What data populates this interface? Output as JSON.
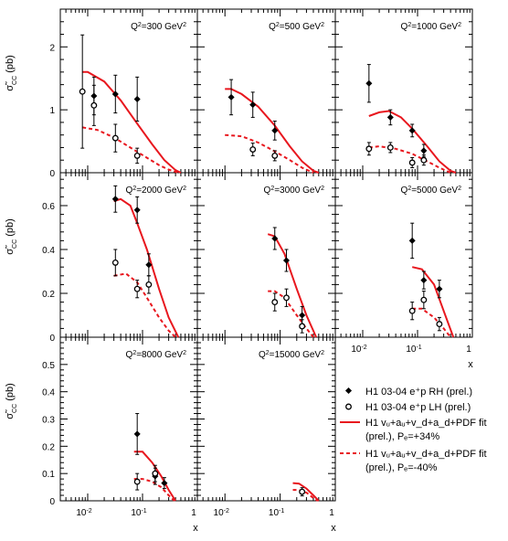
{
  "chart_data": {
    "type": "scatter",
    "x_scale": "log",
    "xlabel": "x",
    "ylabel": "σ̃",
    "ylabel_sub": "CC",
    "ylabel_unit": "(pb)",
    "x_tick_labels": [
      {
        "base": "10",
        "exp": "-2"
      },
      {
        "base": "10",
        "exp": "-1"
      },
      {
        "base": "1",
        "exp": ""
      }
    ],
    "colors": {
      "theory": "#e8171e",
      "data": "#000000"
    },
    "rows": [
      {
        "ylim": [
          0,
          2.6
        ],
        "yticks": [
          0,
          1,
          2
        ]
      },
      {
        "ylim": [
          0,
          0.75
        ],
        "yticks": [
          0,
          0.2,
          0.4,
          0.6
        ]
      },
      {
        "ylim": [
          0,
          0.6
        ],
        "yticks": [
          0,
          0.1,
          0.2,
          0.3,
          0.4,
          0.5
        ]
      }
    ],
    "panels": [
      {
        "q2_label": "Q²=300 GeV²",
        "rh_points": [
          {
            "x": 0.013,
            "y": 1.22,
            "err": 0.3
          },
          {
            "x": 0.032,
            "y": 1.25,
            "err": 0.3
          },
          {
            "x": 0.08,
            "y": 1.17,
            "err": 0.35
          }
        ],
        "lh_points": [
          {
            "x": 0.008,
            "y": 1.29,
            "err": 0.9
          },
          {
            "x": 0.013,
            "y": 1.07,
            "err": 0.32
          },
          {
            "x": 0.032,
            "y": 0.55,
            "err": 0.22
          },
          {
            "x": 0.08,
            "y": 0.27,
            "err": 0.12
          }
        ],
        "rh_curve": [
          [
            0.008,
            1.6
          ],
          [
            0.01,
            1.6
          ],
          [
            0.02,
            1.45
          ],
          [
            0.04,
            1.15
          ],
          [
            0.08,
            0.78
          ],
          [
            0.15,
            0.45
          ],
          [
            0.25,
            0.2
          ],
          [
            0.4,
            0.04
          ],
          [
            0.5,
            0.0
          ]
        ],
        "lh_curve": [
          [
            0.008,
            0.72
          ],
          [
            0.015,
            0.68
          ],
          [
            0.03,
            0.56
          ],
          [
            0.06,
            0.4
          ],
          [
            0.1,
            0.28
          ],
          [
            0.2,
            0.12
          ],
          [
            0.3,
            0.05
          ],
          [
            0.45,
            0.0
          ]
        ]
      },
      {
        "q2_label": "Q²=500 GeV²",
        "rh_points": [
          {
            "x": 0.013,
            "y": 1.2,
            "err": 0.28
          },
          {
            "x": 0.032,
            "y": 1.08,
            "err": 0.2
          },
          {
            "x": 0.08,
            "y": 0.67,
            "err": 0.15
          }
        ],
        "lh_points": [
          {
            "x": 0.032,
            "y": 0.37,
            "err": 0.1
          },
          {
            "x": 0.08,
            "y": 0.27,
            "err": 0.08
          }
        ],
        "rh_curve": [
          [
            0.01,
            1.33
          ],
          [
            0.013,
            1.33
          ],
          [
            0.02,
            1.25
          ],
          [
            0.04,
            1.05
          ],
          [
            0.08,
            0.75
          ],
          [
            0.15,
            0.42
          ],
          [
            0.25,
            0.18
          ],
          [
            0.4,
            0.03
          ],
          [
            0.5,
            0.0
          ]
        ],
        "lh_curve": [
          [
            0.01,
            0.6
          ],
          [
            0.02,
            0.58
          ],
          [
            0.04,
            0.48
          ],
          [
            0.08,
            0.34
          ],
          [
            0.15,
            0.2
          ],
          [
            0.25,
            0.08
          ],
          [
            0.4,
            0.0
          ]
        ]
      },
      {
        "q2_label": "Q²=1000 GeV²",
        "rh_points": [
          {
            "x": 0.013,
            "y": 1.42,
            "err": 0.3
          },
          {
            "x": 0.032,
            "y": 0.88,
            "err": 0.12
          },
          {
            "x": 0.08,
            "y": 0.67,
            "err": 0.1
          },
          {
            "x": 0.13,
            "y": 0.35,
            "err": 0.1
          }
        ],
        "lh_points": [
          {
            "x": 0.013,
            "y": 0.38,
            "err": 0.1
          },
          {
            "x": 0.032,
            "y": 0.4,
            "err": 0.08
          },
          {
            "x": 0.08,
            "y": 0.16,
            "err": 0.08
          },
          {
            "x": 0.13,
            "y": 0.2,
            "err": 0.08
          }
        ],
        "rh_curve": [
          [
            0.013,
            0.9
          ],
          [
            0.02,
            0.96
          ],
          [
            0.03,
            0.98
          ],
          [
            0.05,
            0.88
          ],
          [
            0.08,
            0.7
          ],
          [
            0.15,
            0.42
          ],
          [
            0.25,
            0.18
          ],
          [
            0.4,
            0.03
          ],
          [
            0.5,
            0.0
          ]
        ],
        "lh_curve": [
          [
            0.013,
            0.4
          ],
          [
            0.02,
            0.42
          ],
          [
            0.04,
            0.38
          ],
          [
            0.08,
            0.3
          ],
          [
            0.15,
            0.18
          ],
          [
            0.25,
            0.08
          ],
          [
            0.4,
            0.0
          ]
        ]
      },
      {
        "q2_label": "Q²=2000 GeV²",
        "rh_points": [
          {
            "x": 0.032,
            "y": 0.63,
            "err": 0.06
          },
          {
            "x": 0.08,
            "y": 0.58,
            "err": 0.06
          },
          {
            "x": 0.13,
            "y": 0.33,
            "err": 0.05
          }
        ],
        "lh_points": [
          {
            "x": 0.032,
            "y": 0.34,
            "err": 0.06
          },
          {
            "x": 0.08,
            "y": 0.22,
            "err": 0.04
          },
          {
            "x": 0.13,
            "y": 0.24,
            "err": 0.04
          }
        ],
        "rh_curve": [
          [
            0.03,
            0.62
          ],
          [
            0.04,
            0.63
          ],
          [
            0.06,
            0.6
          ],
          [
            0.08,
            0.52
          ],
          [
            0.12,
            0.4
          ],
          [
            0.2,
            0.22
          ],
          [
            0.3,
            0.09
          ],
          [
            0.45,
            0.0
          ]
        ],
        "lh_curve": [
          [
            0.03,
            0.28
          ],
          [
            0.05,
            0.29
          ],
          [
            0.08,
            0.25
          ],
          [
            0.12,
            0.18
          ],
          [
            0.2,
            0.09
          ],
          [
            0.3,
            0.03
          ],
          [
            0.4,
            0.0
          ]
        ]
      },
      {
        "q2_label": "Q²=3000 GeV²",
        "rh_points": [
          {
            "x": 0.08,
            "y": 0.45,
            "err": 0.05
          },
          {
            "x": 0.13,
            "y": 0.35,
            "err": 0.05
          },
          {
            "x": 0.25,
            "y": 0.1,
            "err": 0.04
          }
        ],
        "lh_points": [
          {
            "x": 0.08,
            "y": 0.16,
            "err": 0.04
          },
          {
            "x": 0.13,
            "y": 0.18,
            "err": 0.04
          },
          {
            "x": 0.25,
            "y": 0.05,
            "err": 0.03
          }
        ],
        "rh_curve": [
          [
            0.06,
            0.47
          ],
          [
            0.08,
            0.46
          ],
          [
            0.12,
            0.38
          ],
          [
            0.2,
            0.22
          ],
          [
            0.3,
            0.1
          ],
          [
            0.45,
            0.0
          ]
        ],
        "lh_curve": [
          [
            0.06,
            0.21
          ],
          [
            0.08,
            0.21
          ],
          [
            0.12,
            0.18
          ],
          [
            0.2,
            0.1
          ],
          [
            0.3,
            0.04
          ],
          [
            0.4,
            0.0
          ]
        ]
      },
      {
        "q2_label": "Q²=5000 GeV²",
        "rh_points": [
          {
            "x": 0.08,
            "y": 0.44,
            "err": 0.08
          },
          {
            "x": 0.13,
            "y": 0.26,
            "err": 0.04
          },
          {
            "x": 0.25,
            "y": 0.22,
            "err": 0.04
          }
        ],
        "lh_points": [
          {
            "x": 0.08,
            "y": 0.12,
            "err": 0.04
          },
          {
            "x": 0.13,
            "y": 0.17,
            "err": 0.04
          },
          {
            "x": 0.25,
            "y": 0.06,
            "err": 0.03
          }
        ],
        "rh_curve": [
          [
            0.08,
            0.32
          ],
          [
            0.12,
            0.31
          ],
          [
            0.2,
            0.24
          ],
          [
            0.3,
            0.12
          ],
          [
            0.45,
            0.0
          ]
        ],
        "lh_curve": [
          [
            0.08,
            0.13
          ],
          [
            0.12,
            0.13
          ],
          [
            0.2,
            0.09
          ],
          [
            0.3,
            0.04
          ],
          [
            0.4,
            0.0
          ]
        ]
      },
      {
        "q2_label": "Q²=8000 GeV²",
        "rh_points": [
          {
            "x": 0.08,
            "y": 0.245,
            "err": 0.075
          },
          {
            "x": 0.17,
            "y": 0.09,
            "err": 0.03
          },
          {
            "x": 0.25,
            "y": 0.065,
            "err": 0.02
          }
        ],
        "lh_points": [
          {
            "x": 0.08,
            "y": 0.07,
            "err": 0.03
          },
          {
            "x": 0.17,
            "y": 0.1,
            "err": 0.03
          }
        ],
        "rh_curve": [
          [
            0.07,
            0.18
          ],
          [
            0.1,
            0.18
          ],
          [
            0.15,
            0.14
          ],
          [
            0.22,
            0.09
          ],
          [
            0.3,
            0.04
          ],
          [
            0.4,
            0.0
          ]
        ],
        "lh_curve": [
          [
            0.07,
            0.08
          ],
          [
            0.1,
            0.08
          ],
          [
            0.15,
            0.07
          ],
          [
            0.22,
            0.05
          ],
          [
            0.3,
            0.02
          ],
          [
            0.38,
            0.0
          ]
        ]
      },
      {
        "q2_label": "Q²=15000 GeV²",
        "rh_points": [],
        "lh_points": [
          {
            "x": 0.25,
            "y": 0.033,
            "err": 0.015
          }
        ],
        "rh_curve": [
          [
            0.17,
            0.065
          ],
          [
            0.22,
            0.063
          ],
          [
            0.3,
            0.045
          ],
          [
            0.4,
            0.02
          ],
          [
            0.5,
            0.0
          ]
        ],
        "lh_curve": [
          [
            0.17,
            0.04
          ],
          [
            0.22,
            0.04
          ],
          [
            0.3,
            0.03
          ],
          [
            0.4,
            0.01
          ],
          [
            0.48,
            0.0
          ]
        ]
      }
    ],
    "legend": [
      {
        "kind": "rh",
        "label": "H1 03-04 e⁺p RH (prel.)"
      },
      {
        "kind": "lh",
        "label": "H1 03-04 e⁺p LH (prel.)"
      },
      {
        "kind": "rh_fit",
        "label": "H1 vᵤ+aᵤ+v_d+a_d+PDF fit",
        "label2": "(prel.), Pₑ=+34%"
      },
      {
        "kind": "lh_fit",
        "label": "H1 vᵤ+aᵤ+v_d+a_d+PDF fit",
        "label2": "(prel.), Pₑ=-40%"
      }
    ]
  }
}
